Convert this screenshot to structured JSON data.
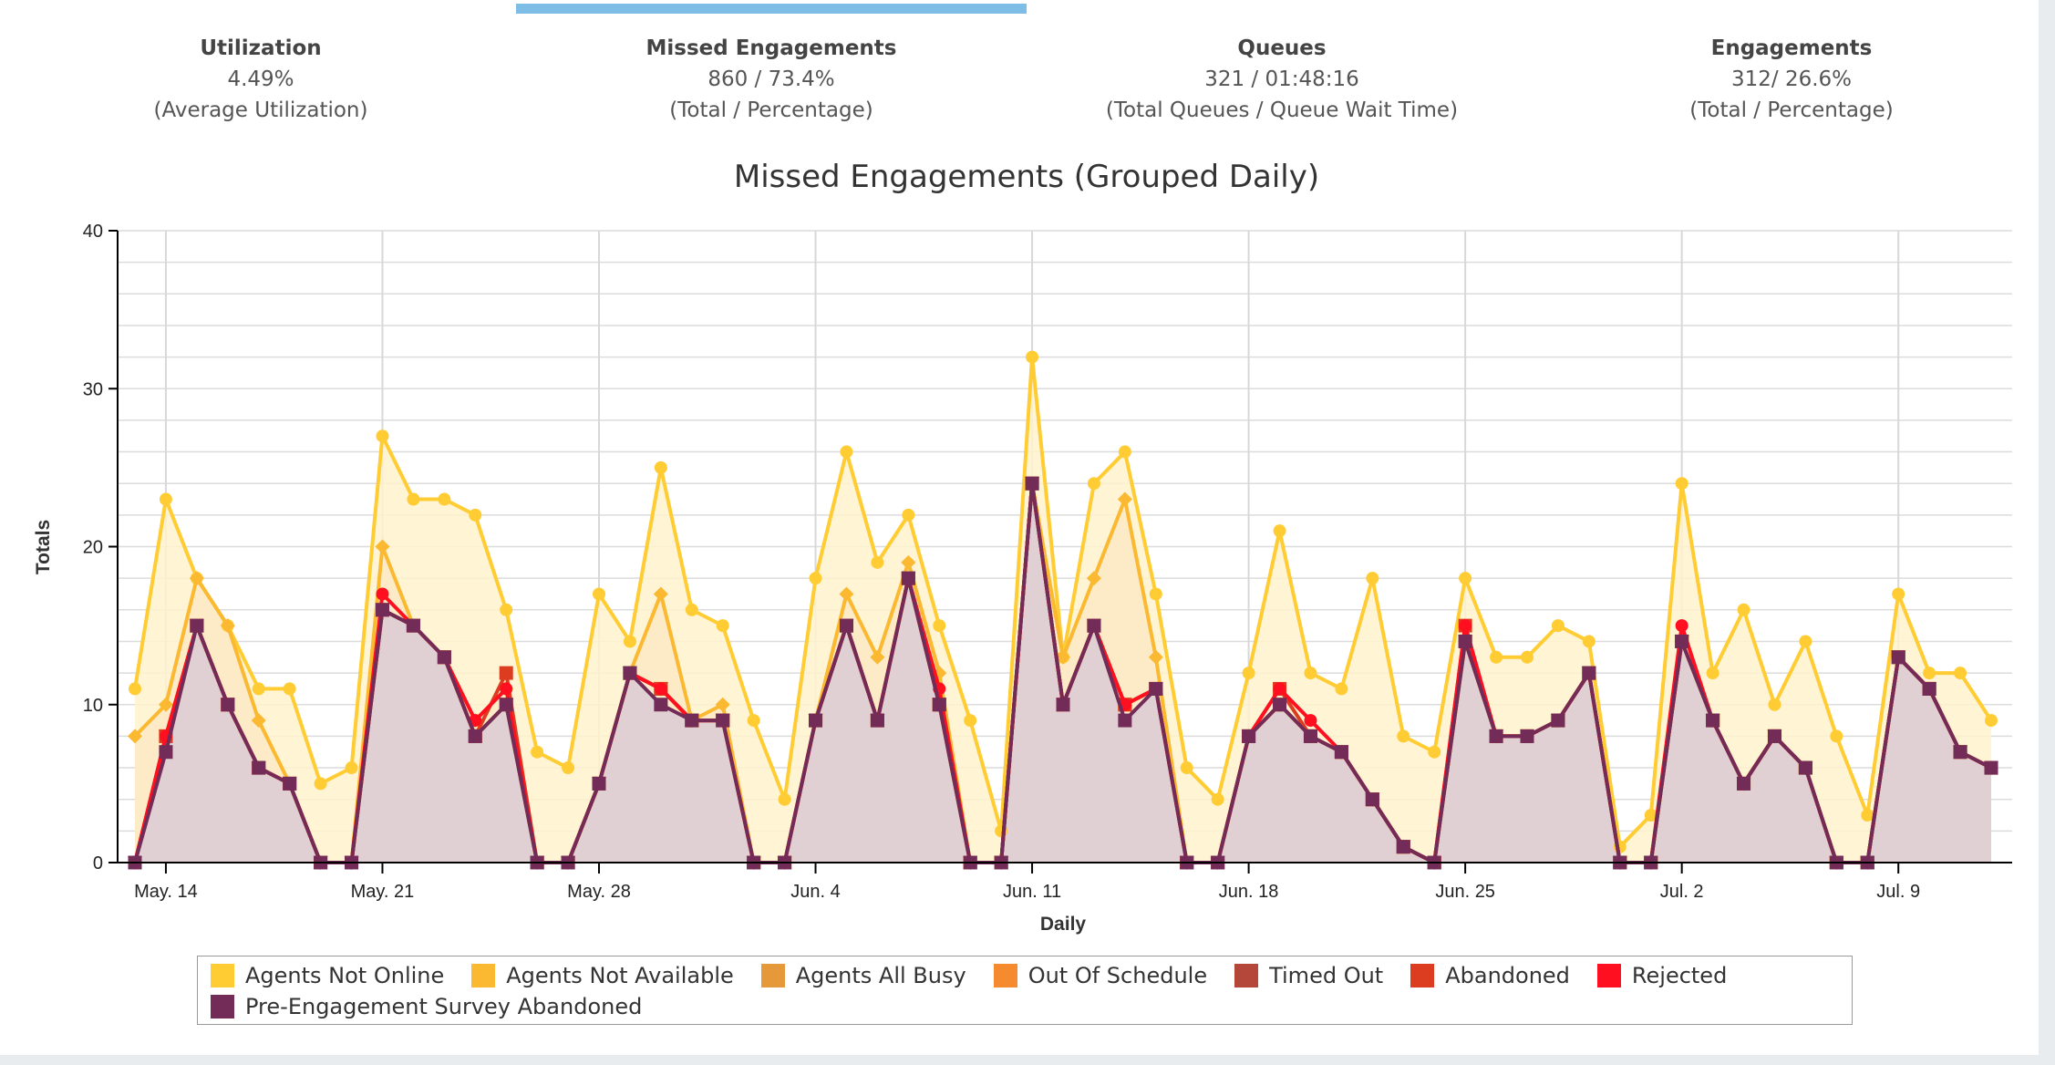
{
  "stats": [
    {
      "title": "Utilization",
      "value": "4.49%",
      "caption": "(Average Utilization)"
    },
    {
      "title": "Missed Engagements",
      "value": "860 / 73.4%",
      "caption": "(Total / Percentage)",
      "active": true
    },
    {
      "title": "Queues",
      "value": "321 / 01:48:16",
      "caption": "(Total Queues / Queue Wait Time)"
    },
    {
      "title": "Engagements",
      "value": "312/ 26.6%",
      "caption": "(Total / Percentage)"
    }
  ],
  "colors": {
    "active_tab": "#7dbde6"
  },
  "chart_data": {
    "type": "area",
    "title": "Missed Engagements (Grouped Daily)",
    "xlabel": "Daily",
    "ylabel": "Totals",
    "ylim": [
      0,
      40
    ],
    "yticks": [
      0,
      10,
      20,
      30,
      40
    ],
    "grid": true,
    "legend": "bottom",
    "xtick_labels": [
      {
        "index": 1,
        "label": "May. 14"
      },
      {
        "index": 8,
        "label": "May. 21"
      },
      {
        "index": 15,
        "label": "May. 28"
      },
      {
        "index": 22,
        "label": "Jun. 4"
      },
      {
        "index": 29,
        "label": "Jun. 11"
      },
      {
        "index": 36,
        "label": "Jun. 18"
      },
      {
        "index": 43,
        "label": "Jun. 25"
      },
      {
        "index": 50,
        "label": "Jul. 2"
      },
      {
        "index": 57,
        "label": "Jul. 9"
      }
    ],
    "x": [
      "May 13",
      "May 14",
      "May 15",
      "May 16",
      "May 17",
      "May 18",
      "May 19",
      "May 20",
      "May 21",
      "May 22",
      "May 23",
      "May 24",
      "May 25",
      "May 26",
      "May 27",
      "May 28",
      "May 29",
      "May 30",
      "May 31",
      "Jun 1",
      "Jun 2",
      "Jun 3",
      "Jun 4",
      "Jun 5",
      "Jun 6",
      "Jun 7",
      "Jun 8",
      "Jun 9",
      "Jun 10",
      "Jun 11",
      "Jun 12",
      "Jun 13",
      "Jun 14",
      "Jun 15",
      "Jun 16",
      "Jun 17",
      "Jun 18",
      "Jun 19",
      "Jun 20",
      "Jun 21",
      "Jun 22",
      "Jun 23",
      "Jun 24",
      "Jun 25",
      "Jun 26",
      "Jun 27",
      "Jun 28",
      "Jun 29",
      "Jun 30",
      "Jul 1",
      "Jul 2",
      "Jul 3",
      "Jul 4",
      "Jul 5",
      "Jul 6",
      "Jul 7",
      "Jul 8",
      "Jul 9",
      "Jul 10",
      "Jul 11",
      "Jul 12"
    ],
    "series": [
      {
        "name": "Agents Not Online",
        "color": "#ffcc33",
        "marker": "circle",
        "fill": "#fff2cc",
        "values": [
          11,
          23,
          18,
          15,
          11,
          11,
          5,
          6,
          27,
          23,
          23,
          22,
          16,
          7,
          6,
          17,
          14,
          25,
          16,
          15,
          9,
          4,
          18,
          26,
          19,
          22,
          15,
          9,
          2,
          32,
          13,
          24,
          26,
          17,
          6,
          4,
          12,
          21,
          12,
          11,
          18,
          8,
          7,
          18,
          13,
          13,
          15,
          14,
          1,
          3,
          24,
          12,
          16,
          10,
          14,
          8,
          3,
          17,
          12,
          12,
          9
        ]
      },
      {
        "name": "Agents Not Available",
        "color": "#fbb831",
        "marker": "diamond",
        "fill": "#fde9c4",
        "values": [
          8,
          10,
          18,
          15,
          9,
          5,
          0,
          0,
          20,
          15,
          13,
          9,
          11,
          0,
          0,
          5,
          12,
          17,
          9,
          10,
          0,
          0,
          9,
          17,
          13,
          19,
          12,
          0,
          0,
          24,
          13,
          18,
          23,
          13,
          0,
          0,
          8,
          10,
          8,
          7,
          4,
          1,
          0,
          14,
          8,
          8,
          9,
          12,
          0,
          0,
          14,
          9,
          5,
          8,
          6,
          0,
          0,
          13,
          11,
          7,
          6
        ]
      },
      {
        "name": "Agents All Busy",
        "color": "#e6993a",
        "marker": "square",
        "values": [
          0,
          8,
          15,
          10,
          6,
          5,
          0,
          0,
          16,
          15,
          13,
          8,
          10,
          0,
          0,
          5,
          12,
          11,
          9,
          9,
          0,
          0,
          9,
          15,
          9,
          18,
          10,
          0,
          0,
          24,
          10,
          15,
          10,
          11,
          0,
          0,
          8,
          10,
          8,
          7,
          4,
          1,
          0,
          14,
          8,
          8,
          9,
          12,
          0,
          0,
          14,
          9,
          5,
          8,
          6,
          0,
          0,
          13,
          11,
          7,
          6
        ]
      },
      {
        "name": "Out Of Schedule",
        "color": "#f58a2e",
        "marker": "square",
        "values": [
          0,
          8,
          15,
          10,
          6,
          5,
          0,
          0,
          16,
          15,
          13,
          8,
          10,
          0,
          0,
          5,
          12,
          11,
          9,
          9,
          0,
          0,
          9,
          15,
          9,
          18,
          10,
          0,
          0,
          24,
          10,
          15,
          10,
          11,
          0,
          0,
          8,
          10,
          8,
          7,
          4,
          1,
          0,
          14,
          8,
          8,
          9,
          12,
          0,
          0,
          14,
          9,
          5,
          8,
          6,
          0,
          0,
          13,
          11,
          7,
          6
        ]
      },
      {
        "name": "Timed Out",
        "color": "#b5473a",
        "marker": "triangle",
        "values": [
          0,
          8,
          15,
          10,
          6,
          5,
          0,
          0,
          16,
          15,
          13,
          8,
          10,
          0,
          0,
          5,
          12,
          11,
          9,
          9,
          0,
          0,
          9,
          15,
          9,
          18,
          10,
          0,
          0,
          24,
          10,
          15,
          10,
          11,
          0,
          0,
          8,
          10,
          8,
          7,
          4,
          1,
          0,
          14,
          8,
          8,
          9,
          12,
          0,
          0,
          14,
          9,
          5,
          8,
          6,
          0,
          0,
          13,
          11,
          7,
          6
        ]
      },
      {
        "name": "Abandoned",
        "color": "#dc3c1f",
        "marker": "square",
        "values": [
          0,
          8,
          15,
          10,
          6,
          5,
          0,
          0,
          16,
          15,
          13,
          8,
          12,
          0,
          0,
          5,
          12,
          11,
          9,
          9,
          0,
          0,
          9,
          15,
          9,
          18,
          10,
          0,
          0,
          24,
          10,
          15,
          10,
          11,
          0,
          0,
          8,
          11,
          8,
          7,
          4,
          1,
          0,
          15,
          8,
          8,
          9,
          12,
          0,
          0,
          14,
          9,
          5,
          8,
          6,
          0,
          0,
          13,
          11,
          7,
          6
        ]
      },
      {
        "name": "Rejected",
        "color": "#ff0f1f",
        "marker": "circle",
        "values": [
          0,
          8,
          15,
          10,
          6,
          5,
          0,
          0,
          17,
          15,
          13,
          9,
          11,
          0,
          0,
          5,
          12,
          11,
          9,
          9,
          0,
          0,
          9,
          15,
          9,
          18,
          11,
          0,
          0,
          24,
          10,
          15,
          10,
          11,
          0,
          0,
          8,
          11,
          9,
          7,
          4,
          1,
          0,
          15,
          8,
          8,
          9,
          12,
          0,
          0,
          15,
          9,
          5,
          8,
          6,
          0,
          0,
          13,
          11,
          7,
          6
        ]
      },
      {
        "name": "Pre-Engagement Survey Abandoned",
        "color": "#722c57",
        "marker": "square",
        "fill": "#dccbd5",
        "values": [
          0,
          7,
          15,
          10,
          6,
          5,
          0,
          0,
          16,
          15,
          13,
          8,
          10,
          0,
          0,
          5,
          12,
          10,
          9,
          9,
          0,
          0,
          9,
          15,
          9,
          18,
          10,
          0,
          0,
          24,
          10,
          15,
          9,
          11,
          0,
          0,
          8,
          10,
          8,
          7,
          4,
          1,
          0,
          14,
          8,
          8,
          9,
          12,
          0,
          0,
          14,
          9,
          5,
          8,
          6,
          0,
          0,
          13,
          11,
          7,
          6
        ]
      }
    ]
  }
}
